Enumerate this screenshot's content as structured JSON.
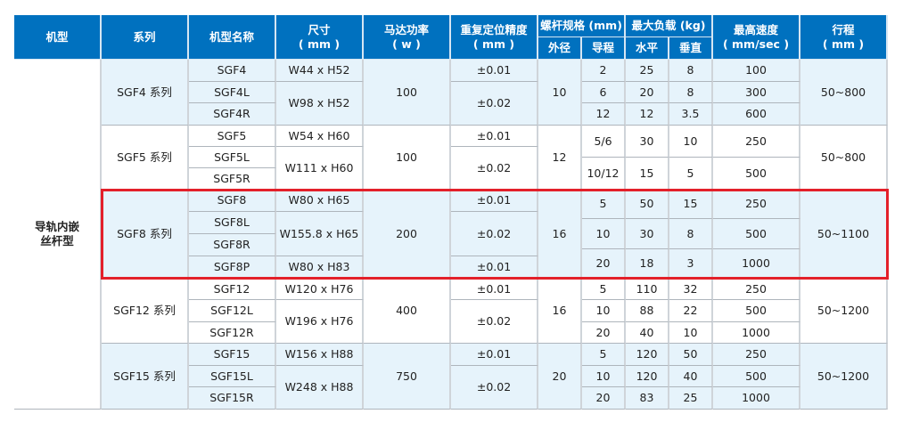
{
  "header": {
    "type": "机型",
    "series": "系列",
    "model": "机型名称",
    "size": [
      "尺寸",
      "( mm )"
    ],
    "power": [
      "马达功率",
      "( w )"
    ],
    "precision": [
      "重复定位精度",
      "( mm )"
    ],
    "screw": "螺杆规格 (mm)",
    "diameter": "外径",
    "lead": "导程",
    "load": "最大负载 (kg)",
    "horizontal": "水平",
    "vertical": "垂直",
    "speed": [
      "最高速度",
      "( mm/sec )"
    ],
    "stroke": [
      "行程",
      "( mm )"
    ]
  },
  "type": [
    "导轨内嵌",
    "丝杆型"
  ],
  "highlight_color": "#e3202a",
  "groups": [
    {
      "series": "SGF4 系列",
      "models": [
        "SGF4",
        "SGF4L",
        "SGF4R"
      ],
      "sizes": [
        "W44 x H52",
        "W98 x H52"
      ],
      "power": "100",
      "precision": [
        "±0.01",
        "±0.02"
      ],
      "diameter": "10",
      "lead": [
        "2",
        "6",
        "12"
      ],
      "horizontal": [
        "25",
        "20",
        "12"
      ],
      "vertical": [
        "8",
        "8",
        "3.5"
      ],
      "speed": [
        "100",
        "300",
        "600"
      ],
      "stroke": "50~800"
    },
    {
      "series": "SGF5 系列",
      "models": [
        "SGF5",
        "SGF5L",
        "SGF5R"
      ],
      "sizes": [
        "W54 x H60",
        "W111 x H60"
      ],
      "power": "100",
      "precision": [
        "±0.01",
        "±0.02"
      ],
      "diameter": "12",
      "lead": [
        "5/6",
        "10/12"
      ],
      "horizontal": [
        "30",
        "15"
      ],
      "vertical": [
        "10",
        "5"
      ],
      "speed": [
        "250",
        "500"
      ],
      "stroke": "50~800"
    },
    {
      "series": "SGF8 系列",
      "models": [
        "SGF8",
        "SGF8L",
        "SGF8R",
        "SGF8P"
      ],
      "sizes": [
        "W80 x H65",
        "W155.8 x H65",
        "W80 x H83"
      ],
      "power": "200",
      "precision": [
        "±0.01",
        "±0.02",
        "±0.01"
      ],
      "diameter": "16",
      "lead": [
        "5",
        "10",
        "20"
      ],
      "horizontal": [
        "50",
        "30",
        "18"
      ],
      "vertical": [
        "15",
        "8",
        "3"
      ],
      "speed": [
        "250",
        "500",
        "1000"
      ],
      "stroke": "50~1100",
      "highlighted": true
    },
    {
      "series": "SGF12 系列",
      "models": [
        "SGF12",
        "SGF12L",
        "SGF12R"
      ],
      "sizes": [
        "W120 x H76",
        "W196 x H76"
      ],
      "power": "400",
      "precision": [
        "±0.01",
        "±0.02"
      ],
      "diameter": "16",
      "lead": [
        "5",
        "10",
        "20"
      ],
      "horizontal": [
        "110",
        "88",
        "40"
      ],
      "vertical": [
        "32",
        "22",
        "10"
      ],
      "speed": [
        "250",
        "500",
        "1000"
      ],
      "stroke": "50~1200"
    },
    {
      "series": "SGF15 系列",
      "models": [
        "SGF15",
        "SGF15L",
        "SGF15R"
      ],
      "sizes": [
        "W156 x H88",
        "W248 x H88"
      ],
      "power": "750",
      "precision": [
        "±0.01",
        "±0.02"
      ],
      "diameter": "20",
      "lead": [
        "5",
        "10",
        "20"
      ],
      "horizontal": [
        "120",
        "120",
        "83"
      ],
      "vertical": [
        "50",
        "40",
        "25"
      ],
      "speed": [
        "250",
        "500",
        "1000"
      ],
      "stroke": "50~1200"
    }
  ]
}
